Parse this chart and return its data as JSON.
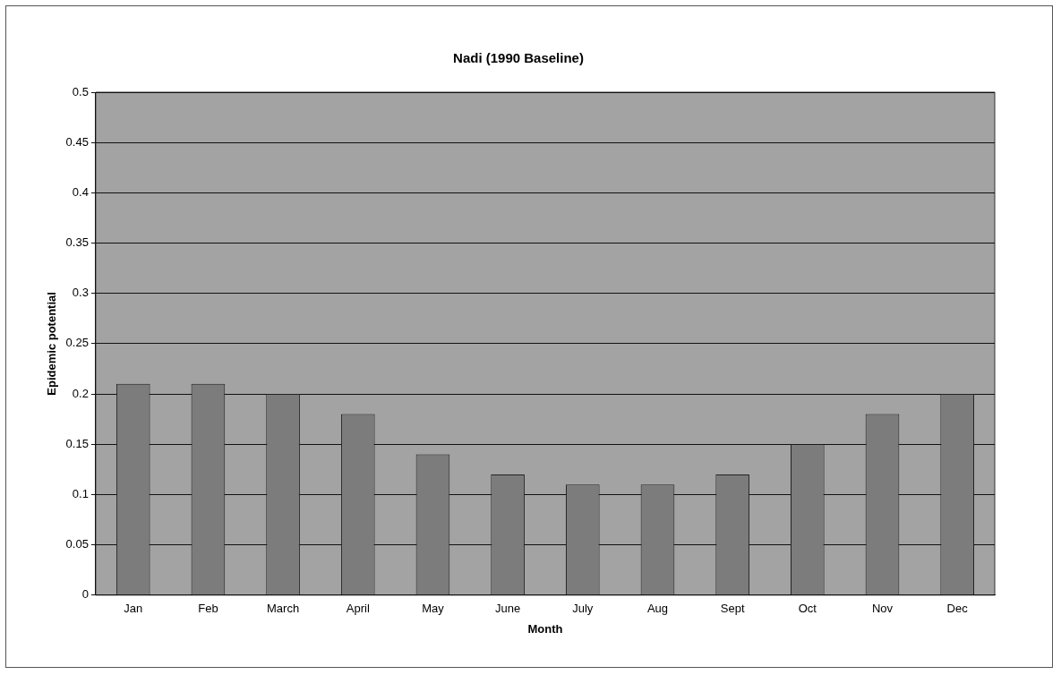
{
  "chart_data": {
    "type": "bar",
    "title": "Nadi (1990 Baseline)",
    "xlabel": "Month",
    "ylabel": "Epidemic potential",
    "categories": [
      "Jan",
      "Feb",
      "March",
      "April",
      "May",
      "June",
      "July",
      "Aug",
      "Sept",
      "Oct",
      "Nov",
      "Dec"
    ],
    "values": [
      0.21,
      0.21,
      0.2,
      0.18,
      0.14,
      0.12,
      0.11,
      0.11,
      0.12,
      0.15,
      0.18,
      0.2
    ],
    "color": "#7c7c7c",
    "ylim": [
      0,
      0.5
    ],
    "yticks": [
      0,
      0.05,
      0.1,
      0.15,
      0.2,
      0.25,
      0.3,
      0.35,
      0.4,
      0.45,
      0.5
    ],
    "grid": "y"
  }
}
